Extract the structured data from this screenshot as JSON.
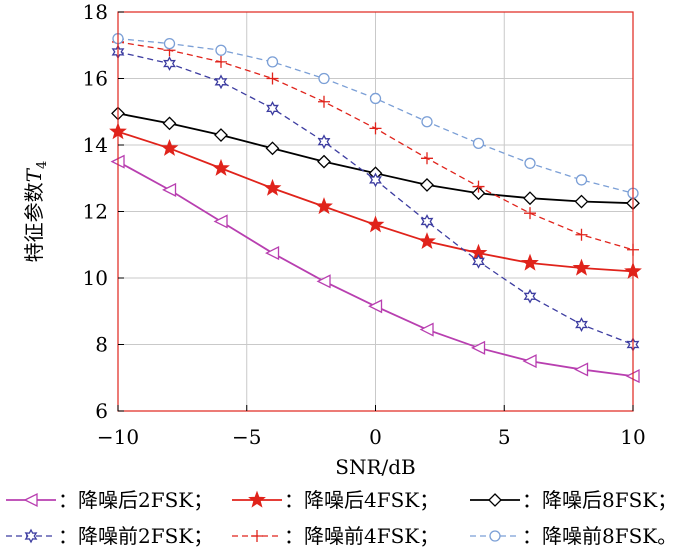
{
  "chart_data": {
    "type": "line",
    "xlabel": "SNR/dB",
    "ylabel": "特征参数T4",
    "ylabel_main": "特征参数",
    "ylabel_italic": "T",
    "ylabel_sub": "4",
    "xlim": [
      -10,
      10
    ],
    "ylim": [
      6,
      18
    ],
    "xticks": [
      -10,
      -5,
      0,
      5,
      10
    ],
    "xtick_labels": [
      "−10",
      "−5",
      "0",
      "5",
      "10"
    ],
    "yticks": [
      6,
      8,
      10,
      12,
      14,
      16,
      18
    ],
    "ytick_labels": [
      "6",
      "8",
      "10",
      "12",
      "14",
      "16",
      "18"
    ],
    "grid": true,
    "x": [
      -10,
      -8,
      -6,
      -4,
      -2,
      0,
      2,
      4,
      6,
      8,
      10
    ],
    "series": [
      {
        "name": "降噪后2FSK",
        "legend_label": "：降噪后2FSK；",
        "color": "#b83fb0",
        "marker": "triangle-left",
        "dash": "solid",
        "values": [
          13.5,
          12.65,
          11.7,
          10.75,
          9.9,
          9.15,
          8.45,
          7.9,
          7.5,
          7.25,
          7.05
        ]
      },
      {
        "name": "降噪后4FSK",
        "legend_label": "：降噪后4FSK；",
        "color": "#e0231b",
        "marker": "star",
        "dash": "solid",
        "values": [
          14.4,
          13.9,
          13.3,
          12.7,
          12.15,
          11.6,
          11.1,
          10.75,
          10.45,
          10.3,
          10.2
        ]
      },
      {
        "name": "降噪后8FSK",
        "legend_label": "：降噪后8FSK；",
        "color": "#000000",
        "marker": "diamond",
        "dash": "solid",
        "values": [
          14.95,
          14.65,
          14.3,
          13.9,
          13.5,
          13.15,
          12.8,
          12.55,
          12.4,
          12.3,
          12.25
        ]
      },
      {
        "name": "降噪前2FSK",
        "legend_label": "：降噪前2FSK；",
        "color": "#3c3ca0",
        "marker": "hexagram",
        "dash": "dashed",
        "values": [
          16.8,
          16.45,
          15.9,
          15.1,
          14.1,
          12.95,
          11.7,
          10.5,
          9.45,
          8.6,
          8.0
        ]
      },
      {
        "name": "降噪前4FSK",
        "legend_label": "：降噪前4FSK；",
        "color": "#e0231b",
        "marker": "plus",
        "dash": "dashed",
        "values": [
          17.1,
          16.85,
          16.5,
          16.0,
          15.3,
          14.5,
          13.6,
          12.75,
          11.95,
          11.3,
          10.85
        ]
      },
      {
        "name": "降噪前8FSK",
        "legend_label": "：降噪前8FSK。",
        "color": "#7b9fd6",
        "marker": "circle",
        "dash": "dashed",
        "values": [
          17.2,
          17.05,
          16.85,
          16.5,
          16.0,
          15.4,
          14.7,
          14.05,
          13.45,
          12.95,
          12.55
        ]
      }
    ],
    "legend_placement": "bottom",
    "frame_color": "#e0231b"
  }
}
